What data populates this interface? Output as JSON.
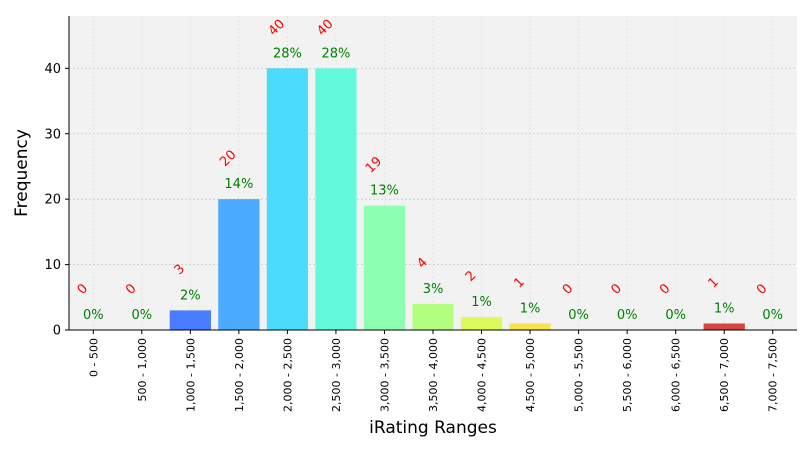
{
  "chart_data": {
    "type": "bar",
    "title": "",
    "xlabel": "iRating Ranges",
    "ylabel": "Frequency",
    "ylim": [
      0,
      48
    ],
    "yticks": [
      0,
      10,
      20,
      30,
      40
    ],
    "grid": true,
    "categories": [
      "0 - 500",
      "500 - 1,000",
      "1,000 - 1,500",
      "1,500 - 2,000",
      "2,000 - 2,500",
      "2,500 - 3,000",
      "3,000 - 3,500",
      "3,500 - 4,000",
      "4,000 - 4,500",
      "4,500 - 5,000",
      "5,000 - 5,500",
      "5,500 - 6,000",
      "6,000 - 6,500",
      "6,500 - 7,000",
      "7,000 - 7,500"
    ],
    "values": [
      0,
      0,
      3,
      20,
      40,
      40,
      19,
      4,
      2,
      1,
      0,
      0,
      0,
      1,
      0
    ],
    "count_labels": [
      "0",
      "0",
      "3",
      "20",
      "40",
      "40",
      "19",
      "4",
      "2",
      "1",
      "0",
      "0",
      "0",
      "1",
      "0"
    ],
    "percent_labels": [
      "0%",
      "0%",
      "2%",
      "14%",
      "28%",
      "28%",
      "13%",
      "3%",
      "1%",
      "1%",
      "0%",
      "0%",
      "0%",
      "1%",
      "0%"
    ],
    "bar_colors": [
      "#3a3fd4",
      "#3a4ff0",
      "#4a7cff",
      "#4aabff",
      "#4adcfa",
      "#63fadc",
      "#8cffb0",
      "#b4ff80",
      "#dcfa5a",
      "#fae34a",
      "#fab23a",
      "#fa7a2a",
      "#f0502a",
      "#d84444",
      "#b02020"
    ],
    "count_label_color": "#ff0000",
    "percent_label_color": "#008000",
    "plot_background": "#f2f2f2"
  }
}
